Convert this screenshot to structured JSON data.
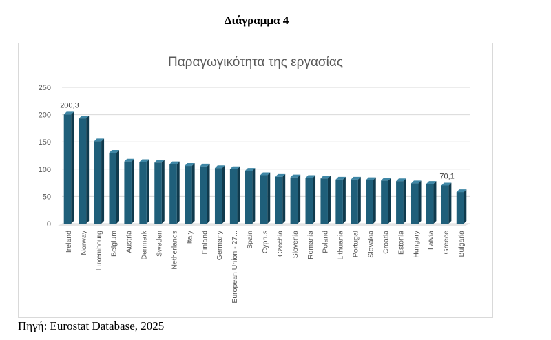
{
  "figure_caption": "Διάγραμμα 4",
  "source_note": "Πηγή: Eurostat Database, 2025",
  "chart_data": {
    "type": "bar",
    "title": "Παραγωγικότητα της εργασίας",
    "xlabel": "",
    "ylabel": "",
    "ylim": [
      0,
      250
    ],
    "yticks": [
      0,
      50,
      100,
      150,
      200,
      250
    ],
    "grid": true,
    "legend": "none",
    "bar_color": "#1f5f7a",
    "categories": [
      "Ireland",
      "Norway",
      "Luxembourg",
      "Belgium",
      "Austria",
      "Denmark",
      "Sweden",
      "Netherlands",
      "Italy",
      "Finland",
      "Germany",
      "European Union - 27...",
      "Spain",
      "Cyprus",
      "Czechia",
      "Slovenia",
      "Romania",
      "Poland",
      "Lithuania",
      "Portugal",
      "Slovakia",
      "Croatia",
      "Estonia",
      "Hungary",
      "Latvia",
      "Greece",
      "Bulgaria"
    ],
    "values": [
      200.3,
      193,
      151,
      130,
      114,
      113,
      112,
      109,
      106,
      105,
      102,
      100,
      97,
      89,
      86,
      85,
      84,
      83,
      81,
      81,
      80,
      79,
      78,
      74,
      73,
      70.1,
      58
    ],
    "data_labels": [
      {
        "index": 0,
        "text": "200,3"
      },
      {
        "index": 25,
        "text": "70,1"
      }
    ]
  }
}
